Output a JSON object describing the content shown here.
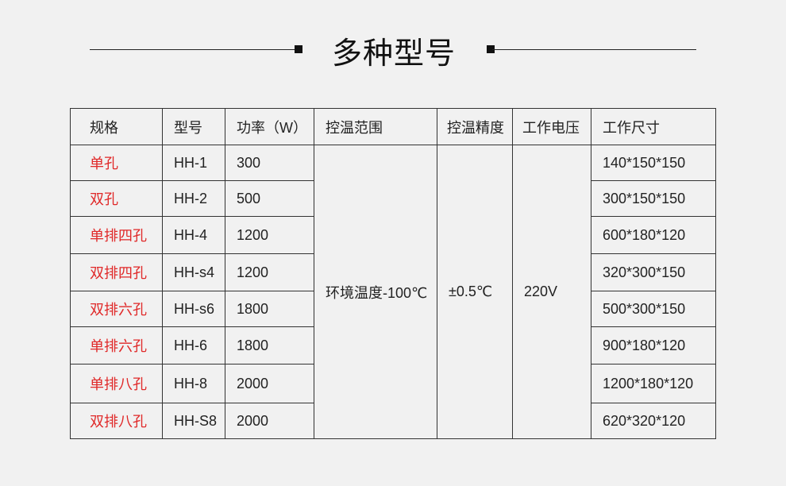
{
  "title": "多种型号",
  "accent_color": "#e02828",
  "table": {
    "headers": [
      "规格",
      "型号",
      "功率（W）",
      "控温范围",
      "控温精度",
      "工作电压",
      "工作尺寸"
    ],
    "temperature_range": "环境温度-100℃",
    "precision": "±0.5℃",
    "voltage": "220V",
    "rows": [
      {
        "spec": "单孔",
        "model": "HH-1",
        "power": "300",
        "size": "140*150*150"
      },
      {
        "spec": "双孔",
        "model": "HH-2",
        "power": "500",
        "size": "300*150*150"
      },
      {
        "spec": "单排四孔",
        "model": "HH-4",
        "power": "1200",
        "size": "600*180*120"
      },
      {
        "spec": "双排四孔",
        "model": "HH-s4",
        "power": "1200",
        "size": "320*300*150"
      },
      {
        "spec": "双排六孔",
        "model": "HH-s6",
        "power": "1800",
        "size": "500*300*150"
      },
      {
        "spec": "单排六孔",
        "model": "HH-6",
        "power": "1800",
        "size": "900*180*120"
      },
      {
        "spec": "单排八孔",
        "model": "HH-8",
        "power": "2000",
        "size": "1200*180*120"
      },
      {
        "spec": "双排八孔",
        "model": "HH-S8",
        "power": "2000",
        "size": "620*320*120"
      }
    ]
  }
}
